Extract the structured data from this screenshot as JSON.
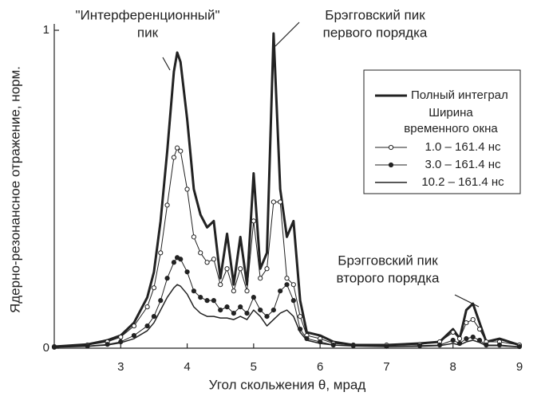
{
  "chart_data": {
    "type": "line",
    "x_label": "Угол скольжения θ,  мрад",
    "y_label": "Ядерно-резонансное отражение,  норм.",
    "x": [
      2.0,
      2.5,
      2.8,
      3.0,
      3.2,
      3.4,
      3.5,
      3.6,
      3.7,
      3.8,
      3.85,
      3.9,
      4.0,
      4.1,
      4.2,
      4.3,
      4.4,
      4.5,
      4.6,
      4.7,
      4.8,
      4.9,
      5.0,
      5.1,
      5.2,
      5.3,
      5.4,
      5.5,
      5.6,
      5.7,
      5.8,
      6.0,
      6.2,
      6.5,
      7.0,
      7.5,
      7.8,
      8.0,
      8.1,
      8.2,
      8.3,
      8.4,
      8.5,
      8.7,
      9.0
    ],
    "xlim": [
      2,
      9
    ],
    "xticks": [
      3,
      4,
      5,
      6,
      7,
      8,
      9
    ],
    "ylim": [
      0,
      1
    ],
    "yticks": [
      0,
      1
    ],
    "legend_title": "Ширина временного окна",
    "series": [
      {
        "name": "Полный интеграл",
        "color": "#222222",
        "line_width": 3,
        "marker": null,
        "values": [
          0.005,
          0.012,
          0.025,
          0.04,
          0.08,
          0.16,
          0.24,
          0.4,
          0.62,
          0.87,
          0.93,
          0.9,
          0.72,
          0.5,
          0.42,
          0.38,
          0.4,
          0.22,
          0.36,
          0.2,
          0.35,
          0.2,
          0.55,
          0.25,
          0.3,
          0.99,
          0.5,
          0.35,
          0.4,
          0.15,
          0.05,
          0.04,
          0.02,
          0.01,
          0.01,
          0.015,
          0.02,
          0.06,
          0.03,
          0.12,
          0.14,
          0.08,
          0.02,
          0.03,
          0.01
        ]
      },
      {
        "name": "1.0 – 161.4 нс",
        "color": "#222222",
        "line_width": 1,
        "marker": "open",
        "values": [
          0.005,
          0.01,
          0.02,
          0.035,
          0.07,
          0.13,
          0.19,
          0.3,
          0.45,
          0.6,
          0.63,
          0.62,
          0.5,
          0.35,
          0.3,
          0.27,
          0.28,
          0.2,
          0.25,
          0.18,
          0.25,
          0.18,
          0.4,
          0.22,
          0.25,
          0.46,
          0.46,
          0.22,
          0.2,
          0.1,
          0.04,
          0.03,
          0.015,
          0.01,
          0.01,
          0.012,
          0.02,
          0.05,
          0.03,
          0.08,
          0.09,
          0.06,
          0.02,
          0.02,
          0.01
        ]
      },
      {
        "name": "3.0 – 161.4 нс",
        "color": "#222222",
        "line_width": 1,
        "marker": "filled",
        "values": [
          0.003,
          0.007,
          0.012,
          0.02,
          0.04,
          0.07,
          0.1,
          0.15,
          0.22,
          0.27,
          0.285,
          0.28,
          0.24,
          0.18,
          0.16,
          0.15,
          0.15,
          0.12,
          0.13,
          0.11,
          0.13,
          0.11,
          0.16,
          0.12,
          0.1,
          0.12,
          0.18,
          0.2,
          0.15,
          0.06,
          0.03,
          0.02,
          0.01,
          0.008,
          0.006,
          0.008,
          0.01,
          0.025,
          0.015,
          0.03,
          0.035,
          0.025,
          0.01,
          0.01,
          0.005
        ]
      },
      {
        "name": "10.2 – 161.4 нс",
        "color": "#222222",
        "line_width": 1.5,
        "marker": null,
        "values": [
          0.003,
          0.006,
          0.01,
          0.017,
          0.03,
          0.055,
          0.08,
          0.12,
          0.16,
          0.19,
          0.2,
          0.195,
          0.17,
          0.13,
          0.11,
          0.1,
          0.1,
          0.095,
          0.095,
          0.09,
          0.1,
          0.09,
          0.12,
          0.1,
          0.07,
          0.09,
          0.11,
          0.12,
          0.1,
          0.05,
          0.025,
          0.015,
          0.01,
          0.007,
          0.005,
          0.006,
          0.008,
          0.015,
          0.01,
          0.02,
          0.025,
          0.018,
          0.008,
          0.008,
          0.004
        ]
      }
    ],
    "annotations": [
      {
        "lines": [
          "\"Интерференционный\"",
          "пик"
        ]
      },
      {
        "lines": [
          "Брэгговский пик",
          "первого порядка"
        ]
      },
      {
        "lines": [
          "Брэгговский пик",
          "второго порядка"
        ]
      }
    ]
  }
}
